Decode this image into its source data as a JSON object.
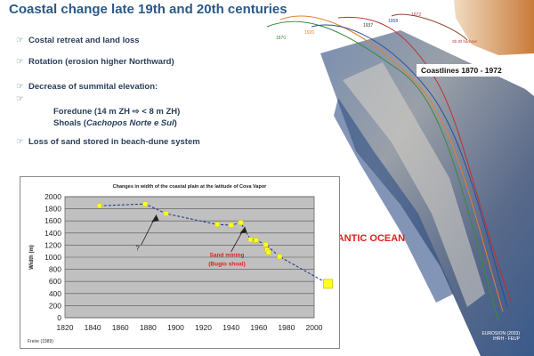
{
  "slide": {
    "title": "Coastal change late 19th and 20th centuries",
    "bullets": [
      {
        "mark": "☞",
        "text": "Costal retreat and land loss"
      },
      {
        "mark": "☞",
        "text": "Rotation (erosion higher Northward)"
      },
      {
        "mark": "☞",
        "text": "Decrease of summital elevation:"
      },
      {
        "mark": "☞",
        "text": ""
      },
      {
        "mark": "☞",
        "text": "Loss of sand stored in beach-dune system"
      }
    ],
    "sub_lines": {
      "foredune": "Foredune (14 m ZH  ⇨  < 8 m ZH)",
      "shoals_prefix": "Shoals (",
      "shoals_italic": "Cachopos Norte e Sul",
      "shoals_suffix": ")"
    }
  },
  "map": {
    "coastlines_label": "Coastlines 1870 - 1972",
    "ocean_label": "LANTIC OCEAN",
    "credit_line1": "EUROSION (2003)",
    "credit_line2": "IHRH - FEUP",
    "top_labels": [
      "1870",
      "1920",
      "1937",
      "1958",
      "1972"
    ],
    "harbour_label": "Sb.ID harbour"
  },
  "chart_data": {
    "type": "scatter",
    "title": "Changes in width of the coastal plain at the latitude of Cova Vapor",
    "xlabel": "",
    "ylabel": "Width (m)",
    "xlim": [
      1820,
      2000
    ],
    "ylim": [
      0,
      2000
    ],
    "xticks": [
      1820,
      1840,
      1860,
      1880,
      1900,
      1920,
      1940,
      1960,
      1980,
      2000
    ],
    "yticks": [
      0,
      200,
      400,
      600,
      800,
      1000,
      1200,
      1400,
      1600,
      1800,
      2000
    ],
    "grid": true,
    "series": [
      {
        "x": [
          1845,
          1878,
          1893,
          1930,
          1940,
          1947,
          1954,
          1958,
          1965,
          1966,
          1967,
          1975
        ],
        "y": [
          1850,
          1880,
          1720,
          1540,
          1530,
          1570,
          1290,
          1280,
          1210,
          1120,
          1080,
          1010
        ]
      }
    ],
    "trend": {
      "x": [
        1845,
        1878,
        1893,
        1930,
        1940,
        1947,
        1954,
        1958,
        1965,
        1975,
        2010
      ],
      "y": [
        1850,
        1880,
        1720,
        1540,
        1530,
        1570,
        1290,
        1280,
        1210,
        1010,
        560
      ]
    },
    "endpoint": {
      "x": 2010,
      "y": 560
    },
    "annotations": {
      "question": "?",
      "sand_mining_1": "Sand mining",
      "sand_mining_2": "(Bugio shoal)"
    },
    "source": "Freire (1989)",
    "colors": {
      "marker": "#ffff22",
      "line": "#1f3f8f",
      "plot_bg": "#c0c0c0",
      "grid": "#555555",
      "annotation": "#e0201c"
    }
  }
}
